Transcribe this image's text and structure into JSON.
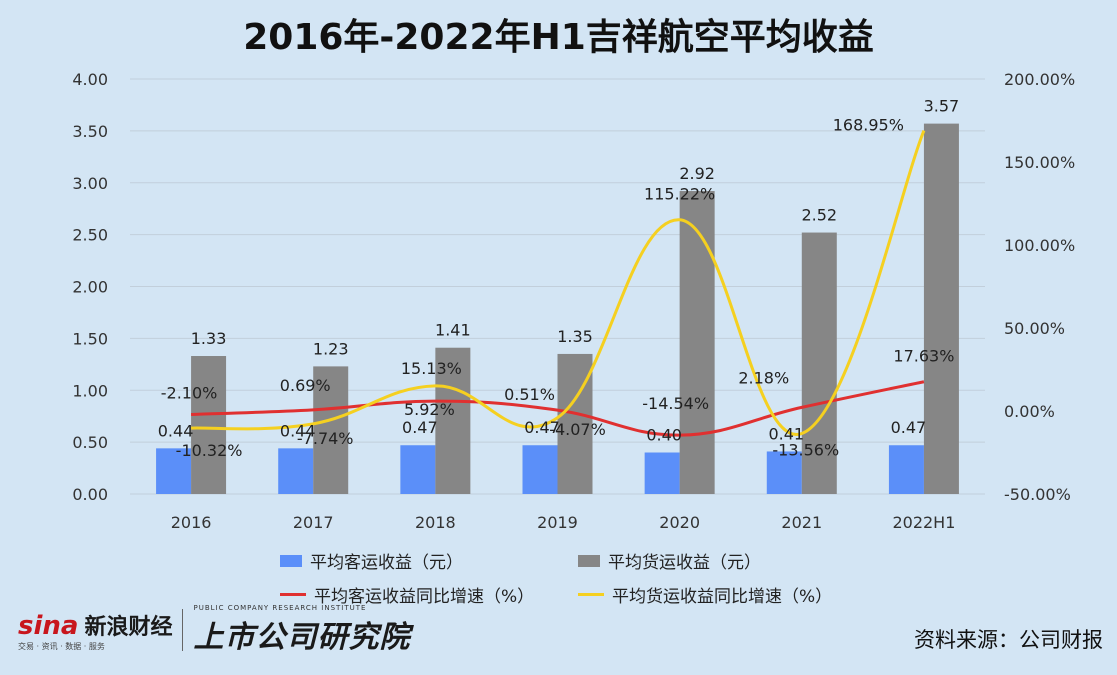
{
  "title": "2016年-2022年H1吉祥航空平均收益",
  "source": "资料来源：公司财报",
  "brand": {
    "sina_word": "sina",
    "sina_cn": "新浪财经",
    "sina_sub": "交易 · 资讯 · 数据 · 服务",
    "institute_cn": "上市公司研究院",
    "institute_en": "PUBLIC COMPANY RESEARCH INSTITUTE"
  },
  "colors": {
    "passenger": "#5b8ff9",
    "cargo": "#868686",
    "passenger_growth": "#e03030",
    "cargo_growth": "#f5d020",
    "background": "#d3e5f4"
  },
  "chart_data": {
    "type": "bar",
    "categories": [
      "2016",
      "2017",
      "2018",
      "2019",
      "2020",
      "2021",
      "2022H1"
    ],
    "ylim": [
      0,
      4
    ],
    "y_ticks": [
      "0.00",
      "0.50",
      "1.00",
      "1.50",
      "2.00",
      "2.50",
      "3.00",
      "3.50",
      "4.00"
    ],
    "y2lim": [
      -50,
      200
    ],
    "y2_ticks": [
      "-50.00%",
      "0.00%",
      "50.00%",
      "100.00%",
      "150.00%",
      "200.00%"
    ],
    "grid": true,
    "legend_position": "bottom",
    "series": [
      {
        "name": "平均客运收益（元）",
        "kind": "bar",
        "axis": "left",
        "values": [
          0.44,
          0.44,
          0.47,
          0.47,
          0.4,
          0.41,
          0.47
        ],
        "labels": [
          "0.44",
          "0.44",
          "0.47",
          "0.47",
          "0.40",
          "0.41",
          "0.47"
        ]
      },
      {
        "name": "平均货运收益（元）",
        "kind": "bar",
        "axis": "left",
        "values": [
          1.33,
          1.23,
          1.41,
          1.35,
          2.92,
          2.52,
          3.57
        ],
        "labels": [
          "1.33",
          "1.23",
          "1.41",
          "1.35",
          "2.92",
          "2.52",
          "3.57"
        ]
      },
      {
        "name": "平均客运收益同比增速（%）",
        "kind": "line",
        "axis": "right",
        "values": [
          -2.1,
          0.69,
          5.92,
          0.51,
          -14.54,
          2.18,
          17.63
        ],
        "labels": [
          "-2.10%",
          "0.69%",
          "5.92%",
          "0.51%",
          "-14.54%",
          "2.18%",
          "17.63%"
        ]
      },
      {
        "name": "平均货运收益同比增速（%）",
        "kind": "line",
        "axis": "right",
        "values": [
          -10.32,
          -7.74,
          15.13,
          -4.07,
          115.22,
          -13.56,
          168.95
        ],
        "labels": [
          "-10.32%",
          "-7.74%",
          "15.13%",
          "-4.07%",
          "115.22%",
          "-13.56%",
          "168.95%"
        ]
      }
    ]
  }
}
